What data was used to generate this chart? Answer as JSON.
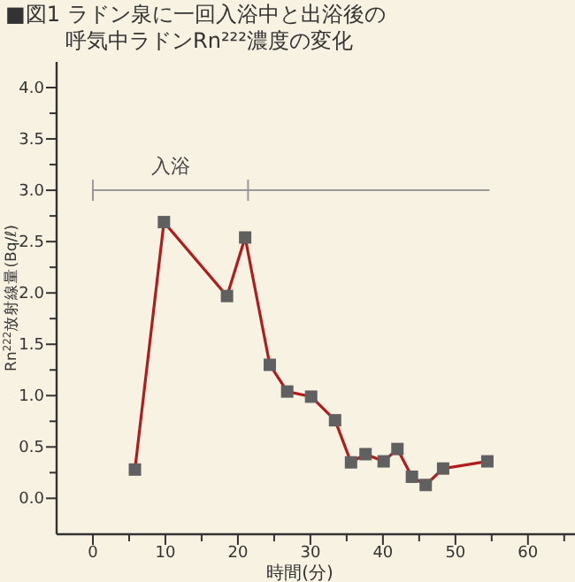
{
  "chart_data": {
    "type": "line",
    "title": "■図1 ラドン泉に一回入浴中と出浴後の呼気中ラドンRn²²²濃度の変化",
    "xlabel": "時間(分)",
    "ylabel": "Rn$^{222}$放射線量(Bq/ℓ)",
    "x": [
      5.8,
      9.8,
      18.5,
      21.0,
      24.4,
      26.8,
      30.1,
      33.4,
      35.6,
      37.6,
      40.1,
      42.0,
      44.0,
      45.9,
      48.3,
      54.4
    ],
    "series": [
      {
        "color": "#b01c1c",
        "values": [
          0.28,
          2.69,
          1.97,
          2.54,
          1.3,
          1.04,
          0.99,
          0.76,
          0.35,
          0.43,
          0.36,
          0.48,
          0.21,
          0.13,
          0.29,
          0.36
        ]
      },
      {
        "type": "line",
        "color": "#999999",
        "marker": "none",
        "x": [
          0,
          21.4,
          54.7
        ],
        "values": [
          3.0,
          3.0,
          3.0
        ]
      }
    ],
    "annotations": [
      {
        "text": "入浴",
        "x": 10.7,
        "y": 3.0
      }
    ],
    "marker": "square",
    "xlim": [
      -5,
      66
    ],
    "ylim": [
      -0.35,
      4.25
    ],
    "xticks": [
      0,
      {
        "value": 5,
        "label": null
      },
      10,
      {
        "value": 15,
        "label": null
      },
      20,
      {
        "value": 25,
        "label": null
      },
      30,
      {
        "value": 35,
        "label": null
      },
      40,
      {
        "value": 45,
        "label": null
      },
      50,
      {
        "value": 55,
        "label": null
      },
      60,
      {
        "value": 65,
        "label": null
      }
    ],
    "yticks": [
      {
        "value": 0,
        "label": "0.0"
      },
      {
        "value": 0.25,
        "label": null
      },
      0.5,
      {
        "value": 0.75,
        "label": null
      },
      {
        "value": 1,
        "label": "1.0"
      },
      {
        "value": 1.25,
        "label": null
      },
      1.5,
      {
        "value": 1.75,
        "label": null
      },
      {
        "value": 2,
        "label": "2.0"
      },
      {
        "value": 2.25,
        "label": null
      },
      2.5,
      {
        "value": 2.75,
        "label": null
      },
      {
        "value": 3,
        "label": "3.0"
      },
      {
        "value": 3.25,
        "label": null
      },
      3.5,
      {
        "value": 3.75,
        "label": null
      },
      {
        "value": 4,
        "label": "4.0"
      }
    ]
  }
}
